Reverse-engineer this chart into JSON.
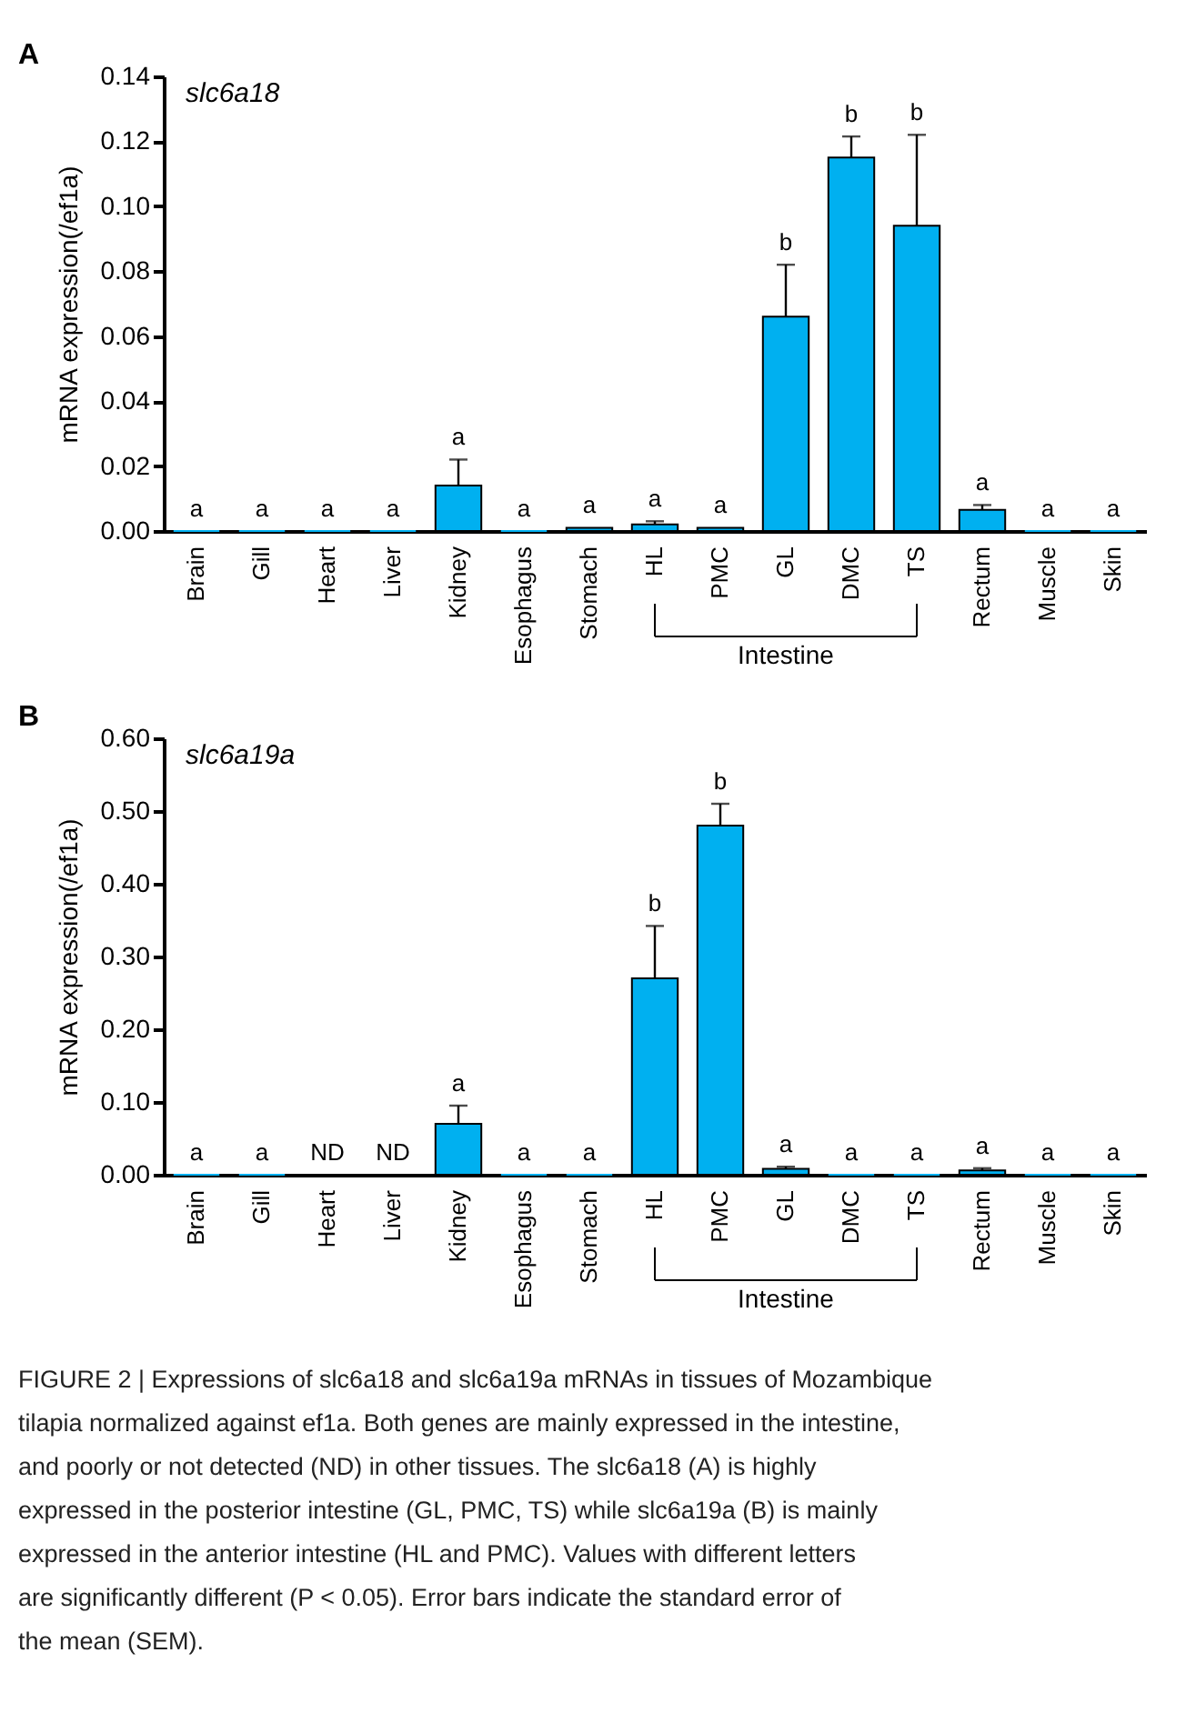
{
  "chart_data": [
    {
      "type": "bar",
      "title": "slc6a18",
      "ylabel": "mRNA expression(/ef1a)",
      "categories": [
        "Brain",
        "Gill",
        "Heart",
        "Liver",
        "Kidney",
        "Esophagus",
        "Stomach",
        "HL",
        "PMC",
        "GL",
        "DMC",
        "TS",
        "Rectum",
        "Muscle",
        "Skin"
      ],
      "values": [
        0,
        0,
        0,
        0,
        0.014,
        0,
        0.001,
        0.002,
        0.001,
        0.066,
        0.115,
        0.094,
        0.0065,
        0,
        0
      ],
      "errors": [
        null,
        null,
        null,
        null,
        0.008,
        null,
        null,
        0.001,
        null,
        0.016,
        0.0065,
        0.028,
        0.0015,
        null,
        null
      ],
      "color": "#00b0f0",
      "ylim": [
        0,
        0.14
      ],
      "yticks": [
        {
          "value": 0,
          "label": "0.00"
        },
        {
          "value": 0.02,
          "label": "0.02"
        },
        {
          "value": 0.04,
          "label": "0.04"
        },
        {
          "value": 0.06,
          "label": "0.06"
        },
        {
          "value": 0.08,
          "label": "0.08"
        },
        {
          "value": 0.1,
          "label": "0.10"
        },
        {
          "value": 0.12,
          "label": "0.12"
        },
        {
          "value": 0.14,
          "label": "0.14"
        }
      ],
      "grid": false,
      "annotations": [
        "A",
        "Intestine",
        {
          "text": "a",
          "x": "Brain",
          "y": 0
        },
        {
          "text": "a",
          "x": "Gill",
          "y": 0
        },
        {
          "text": "a",
          "x": "Heart",
          "y": 0
        },
        {
          "text": "a",
          "x": "Liver",
          "y": 0
        },
        {
          "text": "a",
          "x": "Kidney",
          "y": 0.022
        },
        {
          "text": "a",
          "x": "Esophagus",
          "y": 0
        },
        {
          "text": "a",
          "x": "Stomach",
          "y": 0.001
        },
        {
          "text": "a",
          "x": "HL",
          "y": 0.003
        },
        {
          "text": "a",
          "x": "PMC",
          "y": 0.001
        },
        {
          "text": "b",
          "x": "GL",
          "y": 0.082
        },
        {
          "text": "b",
          "x": "DMC",
          "y": 0.1215
        },
        {
          "text": "b",
          "x": "TS",
          "y": 0.122
        },
        {
          "text": "a",
          "x": "Rectum",
          "y": 0.008
        },
        {
          "text": "a",
          "x": "Muscle",
          "y": 0
        },
        {
          "text": "a",
          "x": "Skin",
          "y": 0
        }
      ]
    },
    {
      "type": "bar",
      "title": "slc6a19a",
      "ylabel": "mRNA expression(/ef1a)",
      "categories": [
        "Brain",
        "Gill",
        "Heart",
        "Liver",
        "Kidney",
        "Esophagus",
        "Stomach",
        "HL",
        "PMC",
        "GL",
        "DMC",
        "TS",
        "Rectum",
        "Muscle",
        "Skin"
      ],
      "values": [
        0,
        0,
        null,
        null,
        0.07,
        0,
        0,
        0.27,
        0.48,
        0.008,
        0,
        0,
        0.006,
        0,
        0
      ],
      "errors": [
        null,
        null,
        null,
        null,
        0.025,
        null,
        null,
        0.072,
        0.03,
        0.003,
        null,
        null,
        0.003,
        null,
        null
      ],
      "color": "#00b0f0",
      "ylim": [
        0,
        0.6
      ],
      "yticks": [
        {
          "value": 0,
          "label": "0.00"
        },
        {
          "value": 0.1,
          "label": "0.10"
        },
        {
          "value": 0.2,
          "label": "0.20"
        },
        {
          "value": 0.3,
          "label": "0.30"
        },
        {
          "value": 0.4,
          "label": "0.40"
        },
        {
          "value": 0.5,
          "label": "0.50"
        },
        {
          "value": 0.6,
          "label": "0.60"
        }
      ],
      "grid": false,
      "annotations": [
        "B",
        "Intestine",
        "ND",
        "ND",
        "FIGURE 2 | Expressions of slc6a18 and slc6a19a mRNAs in tissues of Mozambique tilapia normalized against ef1a. Both genes are mainly expressed in the intestine, and poorly or not detected (ND) in other tissues. The slc6a18 (A) is highly expressed in the posterior intestine (GL, PMC, TS) while slc6a19a (B) is mainly expressed in the anterior intestine (HL and PMC). Values with different letters are significantly different (P < 0.05). Error bars indicate the standard error of the mean (SEM).",
        {
          "text": "a",
          "x": "Brain",
          "y": 0
        },
        {
          "text": "a",
          "x": "Gill",
          "y": 0
        },
        {
          "text": "a",
          "x": "Kidney",
          "y": 0.095
        },
        {
          "text": "a",
          "x": "Esophagus",
          "y": 0
        },
        {
          "text": "a",
          "x": "Stomach",
          "y": 0
        },
        {
          "text": "b",
          "x": "HL",
          "y": 0.342
        },
        {
          "text": "b",
          "x": "PMC",
          "y": 0.51
        },
        {
          "text": "a",
          "x": "GL",
          "y": 0.011
        },
        {
          "text": "a",
          "x": "DMC",
          "y": 0
        },
        {
          "text": "a",
          "x": "TS",
          "y": 0
        },
        {
          "text": "a",
          "x": "Rectum",
          "y": 0.009
        },
        {
          "text": "a",
          "x": "Muscle",
          "y": 0
        },
        {
          "text": "a",
          "x": "Skin",
          "y": 0
        }
      ]
    }
  ]
}
